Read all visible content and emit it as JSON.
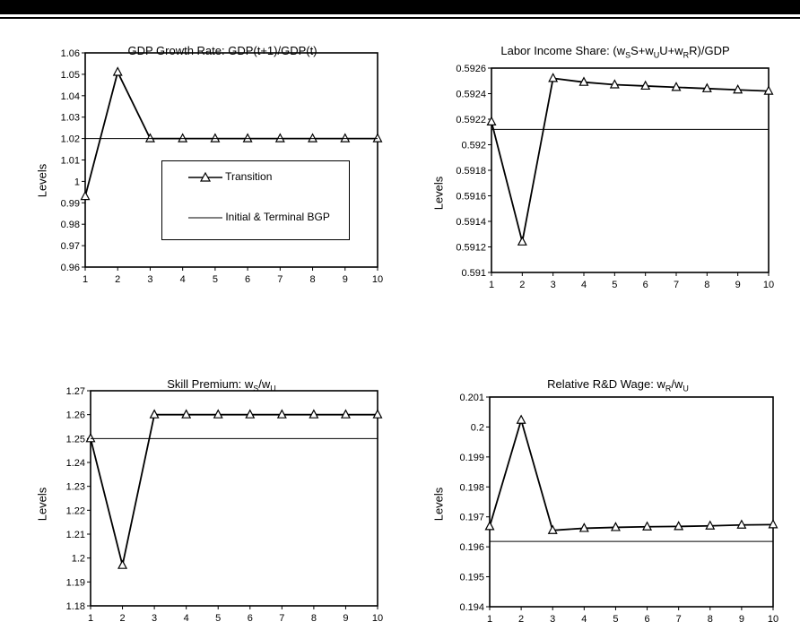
{
  "chart_data": [
    {
      "type": "line",
      "title": "GDP Growth Rate: GDP(t+1)/GDP(t)",
      "ylabel": "Levels",
      "x": [
        1,
        2,
        3,
        4,
        5,
        6,
        7,
        8,
        9,
        10
      ],
      "ylim": [
        0.96,
        1.06
      ],
      "yticks": [
        "0.96",
        "0.97",
        "0.98",
        "0.99",
        "1",
        "1.01",
        "1.02",
        "1.03",
        "1.04",
        "1.05",
        "1.06"
      ],
      "ytick_values": [
        0.96,
        0.97,
        0.98,
        0.99,
        1.0,
        1.01,
        1.02,
        1.03,
        1.04,
        1.05,
        1.06
      ],
      "series": [
        {
          "name": "Transition",
          "marker": "triangle",
          "values": [
            0.993,
            1.051,
            1.02,
            1.02,
            1.02,
            1.02,
            1.02,
            1.02,
            1.02,
            1.02
          ]
        },
        {
          "name": "Initial & Terminal BGP",
          "marker": "none",
          "values": [
            1.02,
            1.02,
            1.02,
            1.02,
            1.02,
            1.02,
            1.02,
            1.02,
            1.02,
            1.02
          ]
        }
      ],
      "legend_position": "center"
    },
    {
      "type": "line",
      "title_parts": {
        "a": "Labor Income Share: (w",
        "s1": "S",
        "b": "S+w",
        "s2": "U",
        "c": "U+w",
        "s3": "R",
        "d": "R)/GDP"
      },
      "ylabel": "Levels",
      "x": [
        1,
        2,
        3,
        4,
        5,
        6,
        7,
        8,
        9,
        10
      ],
      "ylim": [
        0.591,
        0.5926
      ],
      "yticks": [
        "0.591",
        "0.5912",
        "0.5914",
        "0.5916",
        "0.5918",
        "0.592",
        "0.5922",
        "0.5924",
        "0.5926"
      ],
      "ytick_values": [
        0.591,
        0.5912,
        0.5914,
        0.5916,
        0.5918,
        0.592,
        0.5922,
        0.5924,
        0.5926
      ],
      "series": [
        {
          "name": "Transition",
          "marker": "triangle",
          "values": [
            0.59218,
            0.59124,
            0.59252,
            0.59249,
            0.59247,
            0.59246,
            0.59245,
            0.59244,
            0.59243,
            0.59242
          ]
        },
        {
          "name": "Initial & Terminal BGP",
          "marker": "none",
          "values": [
            0.59212,
            0.59212,
            0.59212,
            0.59212,
            0.59212,
            0.59212,
            0.59212,
            0.59212,
            0.59212,
            0.59212
          ]
        }
      ]
    },
    {
      "type": "line",
      "title_parts": {
        "a": "Skill Premium:  w",
        "s1": "S",
        "b": "/w",
        "s2": "U"
      },
      "ylabel": "Levels",
      "x": [
        1,
        2,
        3,
        4,
        5,
        6,
        7,
        8,
        9,
        10
      ],
      "ylim": [
        1.18,
        1.27
      ],
      "yticks": [
        "1.18",
        "1.19",
        "1.2",
        "1.21",
        "1.22",
        "1.23",
        "1.24",
        "1.25",
        "1.26",
        "1.27"
      ],
      "ytick_values": [
        1.18,
        1.19,
        1.2,
        1.21,
        1.22,
        1.23,
        1.24,
        1.25,
        1.26,
        1.27
      ],
      "series": [
        {
          "name": "Transition",
          "marker": "triangle",
          "values": [
            1.25,
            1.197,
            1.26,
            1.26,
            1.26,
            1.26,
            1.26,
            1.26,
            1.26,
            1.26
          ]
        },
        {
          "name": "Initial & Terminal BGP",
          "marker": "none",
          "values": [
            1.25,
            1.25,
            1.25,
            1.25,
            1.25,
            1.25,
            1.25,
            1.25,
            1.25,
            1.25
          ]
        }
      ]
    },
    {
      "type": "line",
      "title_parts": {
        "a": "Relative R&D Wage:  w",
        "s1": "R",
        "b": "/w",
        "s2": "U"
      },
      "ylabel": "Levels",
      "x": [
        1,
        2,
        3,
        4,
        5,
        6,
        7,
        8,
        9,
        10
      ],
      "ylim": [
        0.194,
        0.201
      ],
      "yticks": [
        "0.194",
        "0.195",
        "0.196",
        "0.197",
        "0.198",
        "0.199",
        "0.2",
        "0.201"
      ],
      "ytick_values": [
        0.194,
        0.195,
        0.196,
        0.197,
        0.198,
        0.199,
        0.2,
        0.201
      ],
      "series": [
        {
          "name": "Transition",
          "marker": "triangle",
          "values": [
            0.19668,
            0.20023,
            0.19655,
            0.19662,
            0.19665,
            0.19667,
            0.19668,
            0.1967,
            0.19673,
            0.19674
          ]
        },
        {
          "name": "Initial & Terminal BGP",
          "marker": "none",
          "values": [
            0.19618,
            0.19618,
            0.19618,
            0.19618,
            0.19618,
            0.19618,
            0.19618,
            0.19618,
            0.19618,
            0.19618
          ]
        }
      ]
    }
  ]
}
